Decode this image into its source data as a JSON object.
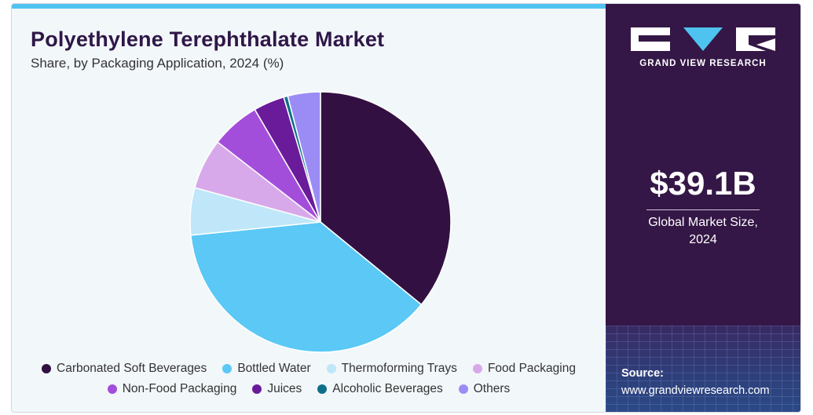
{
  "title": "Polyethylene Terephthalate Market",
  "subtitle": "Share, by Packaging Application, 2024 (%)",
  "chart_data": {
    "type": "pie",
    "title": "Polyethylene Terephthalate Market",
    "subtitle": "Share, by Packaging Application, 2024 (%)",
    "legend_position": "bottom",
    "slices": [
      {
        "label": "Carbonated Soft Beverages",
        "value": 35.5,
        "color": "#331042"
      },
      {
        "label": "Bottled Water",
        "value": 37.0,
        "color": "#5bc8f5"
      },
      {
        "label": "Thermoforming Trays",
        "value": 5.8,
        "color": "#bfe7f9"
      },
      {
        "label": "Food Packaging",
        "value": 6.2,
        "color": "#d8a9ea"
      },
      {
        "label": "Non-Food Packaging",
        "value": 6.0,
        "color": "#a34edb"
      },
      {
        "label": "Juices",
        "value": 3.8,
        "color": "#6a1b9a"
      },
      {
        "label": "Alcoholic Beverages",
        "value": 0.5,
        "color": "#0e6f8a"
      },
      {
        "label": "Others",
        "value": 4.0,
        "color": "#9b8cf5"
      }
    ]
  },
  "sidebar": {
    "brand": "GRAND VIEW RESEARCH",
    "market_value": "$39.1B",
    "market_caption_line1": "Global Market Size,",
    "market_caption_line2": "2024",
    "source_label": "Source:",
    "source_url": "www.grandviewresearch.com"
  },
  "colors": {
    "brand_dark": "#341746",
    "accent": "#4fc3f0",
    "background": "#f2f7fa"
  }
}
